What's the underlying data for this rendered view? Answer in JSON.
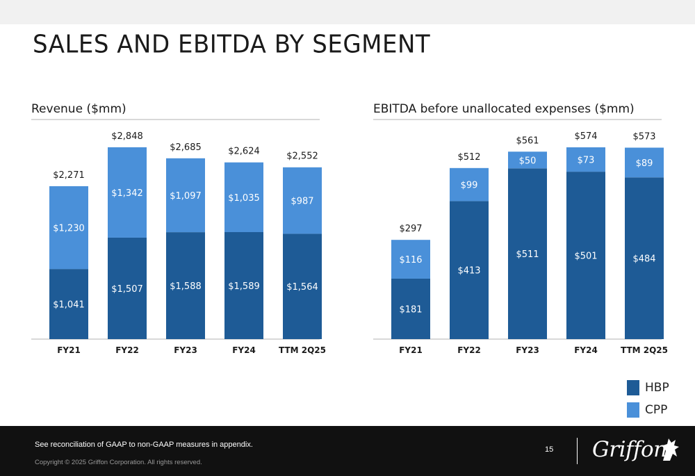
{
  "page": {
    "title": "SALES AND EBITDA BY SEGMENT",
    "footnote": "See reconciliation of GAAP to non-GAAP measures in appendix.",
    "copyright": "Copyright © 2025 Griffon Corporation. All rights reserved.",
    "page_number": "15",
    "logo_text": "Griffon"
  },
  "legend": [
    {
      "name": "HBP",
      "color": "#1e5b96"
    },
    {
      "name": "CPP",
      "color": "#4a90d9"
    }
  ],
  "chart_data": [
    {
      "type": "bar",
      "stacked": true,
      "title": "Revenue ($mm)",
      "categories": [
        "FY21",
        "FY22",
        "FY23",
        "FY24",
        "TTM 2Q25"
      ],
      "series": [
        {
          "name": "HBP",
          "color": "#1e5b96",
          "values": [
            1041,
            1507,
            1588,
            1589,
            1564
          ],
          "labels": [
            "$1,041",
            "$1,507",
            "$1,588",
            "$1,589",
            "$1,564"
          ]
        },
        {
          "name": "CPP",
          "color": "#4a90d9",
          "values": [
            1230,
            1342,
            1097,
            1035,
            987
          ],
          "labels": [
            "$1,230",
            "$1,342",
            "$1,097",
            "$1,035",
            "$987"
          ]
        }
      ],
      "totals": [
        2271,
        2848,
        2685,
        2624,
        2552
      ],
      "total_labels": [
        "$2,271",
        "$2,848",
        "$2,685",
        "$2,624",
        "$2,552"
      ],
      "ylim": [
        0,
        2848
      ]
    },
    {
      "type": "bar",
      "stacked": true,
      "title": "EBITDA before unallocated expenses ($mm)",
      "categories": [
        "FY21",
        "FY22",
        "FY23",
        "FY24",
        "TTM 2Q25"
      ],
      "series": [
        {
          "name": "HBP",
          "color": "#1e5b96",
          "values": [
            181,
            413,
            511,
            501,
            484
          ],
          "labels": [
            "$181",
            "$413",
            "$511",
            "$501",
            "$484"
          ]
        },
        {
          "name": "CPP",
          "color": "#4a90d9",
          "values": [
            116,
            99,
            50,
            73,
            89
          ],
          "labels": [
            "$116",
            "$99",
            "$50",
            "$73",
            "$89"
          ]
        }
      ],
      "totals": [
        297,
        512,
        561,
        574,
        573
      ],
      "total_labels": [
        "$297",
        "$512",
        "$561",
        "$574",
        "$573"
      ],
      "ylim": [
        0,
        574
      ]
    }
  ]
}
